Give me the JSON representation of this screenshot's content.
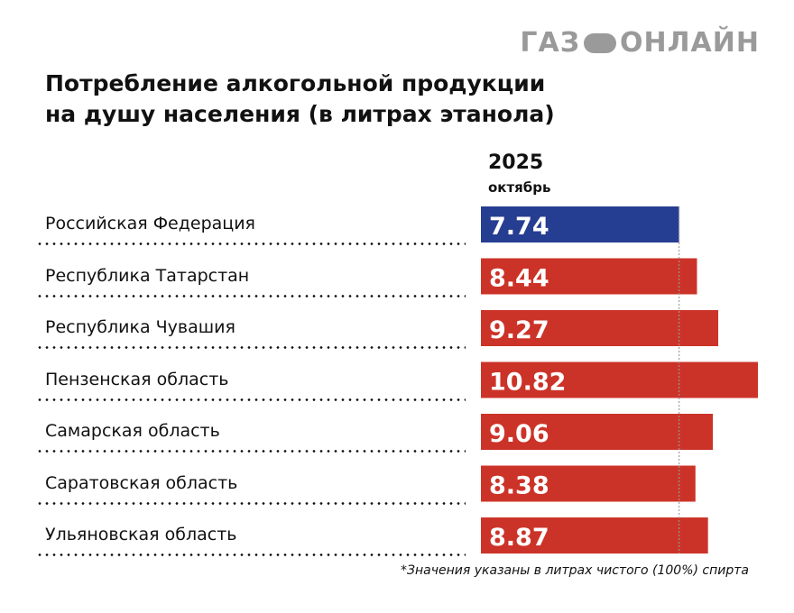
{
  "logo": {
    "text_left": "ГАЗ",
    "text_right": "ОНЛАЙН",
    "color": "#9a9a9a"
  },
  "header": {
    "title_line1": "Потребление алкогольной продукции",
    "title_line2": "на душу населения (в литрах этанола)",
    "year": "2025",
    "month": "октябрь"
  },
  "footnote": "*Значения указаны в литрах чистого (100%) спирта",
  "colors": {
    "highlight": "#263e91",
    "default": "#cc3328",
    "reference_line": "#999999"
  },
  "chart_data": {
    "type": "bar",
    "orientation": "horizontal",
    "title": "Потребление алкогольной продукции на душу населения (в литрах этанола)",
    "subtitle": "2025 октябрь",
    "xlabel": "",
    "ylabel": "",
    "xlim": [
      0,
      10.82
    ],
    "grid": false,
    "reference_line": {
      "value": 7.74,
      "label": "Российская Федерация",
      "style": "dotted"
    },
    "categories": [
      "Российская Федерация",
      "Республика Татарстан",
      "Республика Чувашия",
      "Пензенская область",
      "Самарская область",
      "Саратовская область",
      "Ульяновская область"
    ],
    "values": [
      7.74,
      8.44,
      9.27,
      10.82,
      9.06,
      8.38,
      8.87
    ],
    "value_labels": [
      "7.74",
      "8.44",
      "9.27",
      "10.82",
      "9.06",
      "8.38",
      "8.87"
    ],
    "highlight_index": 0,
    "note": "*Значения указаны в литрах чистого (100%) спирта"
  }
}
